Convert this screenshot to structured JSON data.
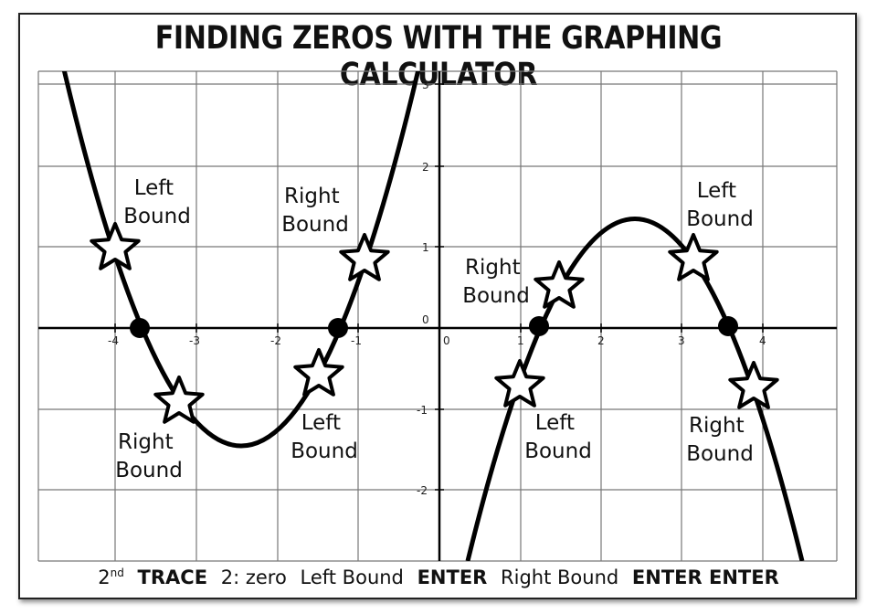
{
  "title": "FINDING ZEROS WITH THE GRAPHING CALCULATOR",
  "left_panel": {
    "x_ticks": [
      "-4",
      "-3",
      "-2",
      "-1"
    ],
    "labels": [
      {
        "id": "ll1",
        "text": [
          "Left",
          "Bound"
        ]
      },
      {
        "id": "ll2",
        "text": [
          "Right",
          "Bound"
        ]
      },
      {
        "id": "ll3",
        "text": [
          "Right",
          "Bound"
        ]
      },
      {
        "id": "ll4",
        "text": [
          "Left",
          "Bound"
        ]
      }
    ]
  },
  "right_panel": {
    "x_ticks": [
      "0",
      "1",
      "2",
      "3",
      "4"
    ],
    "y_ticks": [
      "3",
      "2",
      "1",
      "0",
      "-1",
      "-2"
    ],
    "labels": [
      {
        "id": "rl1",
        "text": [
          "Right",
          "Bound"
        ]
      },
      {
        "id": "rl2",
        "text": [
          "Left",
          "Bound"
        ]
      },
      {
        "id": "rl3",
        "text": [
          "Left",
          "Bound"
        ]
      },
      {
        "id": "rl4",
        "text": [
          "Right",
          "Bound"
        ]
      }
    ]
  },
  "footer": {
    "key1": "2",
    "key1_sup": "nd",
    "key2": "TRACE",
    "step1": "2: zero",
    "step2": "Left Bound",
    "step3": "ENTER",
    "step4": "Right Bound",
    "step5": "ENTER ENTER"
  }
}
